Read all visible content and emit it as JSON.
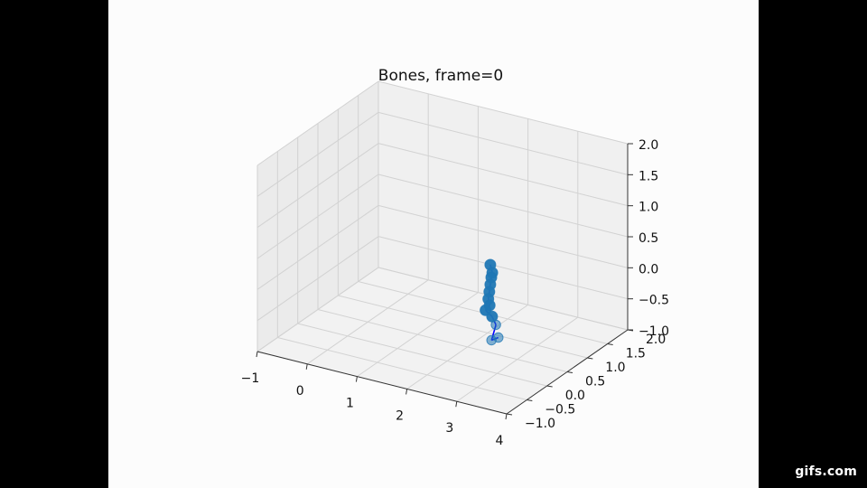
{
  "chart_data": {
    "type": "scatter",
    "title": "Bones, frame=0",
    "xlim": [
      -1,
      4
    ],
    "ylim": [
      -1,
      2
    ],
    "zlim": [
      -1,
      2
    ],
    "x_ticks": [
      "−1",
      "0",
      "1",
      "2",
      "3",
      "4"
    ],
    "y_ticks": [
      "−1.0",
      "−0.5",
      "0.0",
      "0.5",
      "1.0",
      "1.5",
      "2.0"
    ],
    "z_ticks": [
      "−1.0",
      "−0.5",
      "0.0",
      "0.5",
      "1.0",
      "1.5",
      "2.0"
    ],
    "grid": true,
    "series": [
      {
        "marker_color": "#1f77b4",
        "bone_color": "#0000ff",
        "points": [
          {
            "x": 2.2,
            "y": 0.82,
            "z": 0.22
          },
          {
            "x": 2.24,
            "y": 0.82,
            "z": 0.1
          },
          {
            "x": 2.22,
            "y": 0.82,
            "z": 0.02
          },
          {
            "x": 2.2,
            "y": 0.82,
            "z": -0.1
          },
          {
            "x": 2.18,
            "y": 0.82,
            "z": -0.22
          },
          {
            "x": 2.16,
            "y": 0.82,
            "z": -0.34
          },
          {
            "x": 2.17,
            "y": 0.84,
            "z": -0.45
          },
          {
            "x": 2.12,
            "y": 0.8,
            "z": -0.52
          },
          {
            "x": 2.22,
            "y": 0.84,
            "z": -0.62
          },
          {
            "x": 2.28,
            "y": 0.86,
            "z": -0.75
          },
          {
            "x": 2.24,
            "y": 0.8,
            "z": -0.98
          },
          {
            "x": 2.36,
            "y": 0.82,
            "z": -0.92
          }
        ]
      }
    ]
  },
  "watermark": "gifs.com"
}
